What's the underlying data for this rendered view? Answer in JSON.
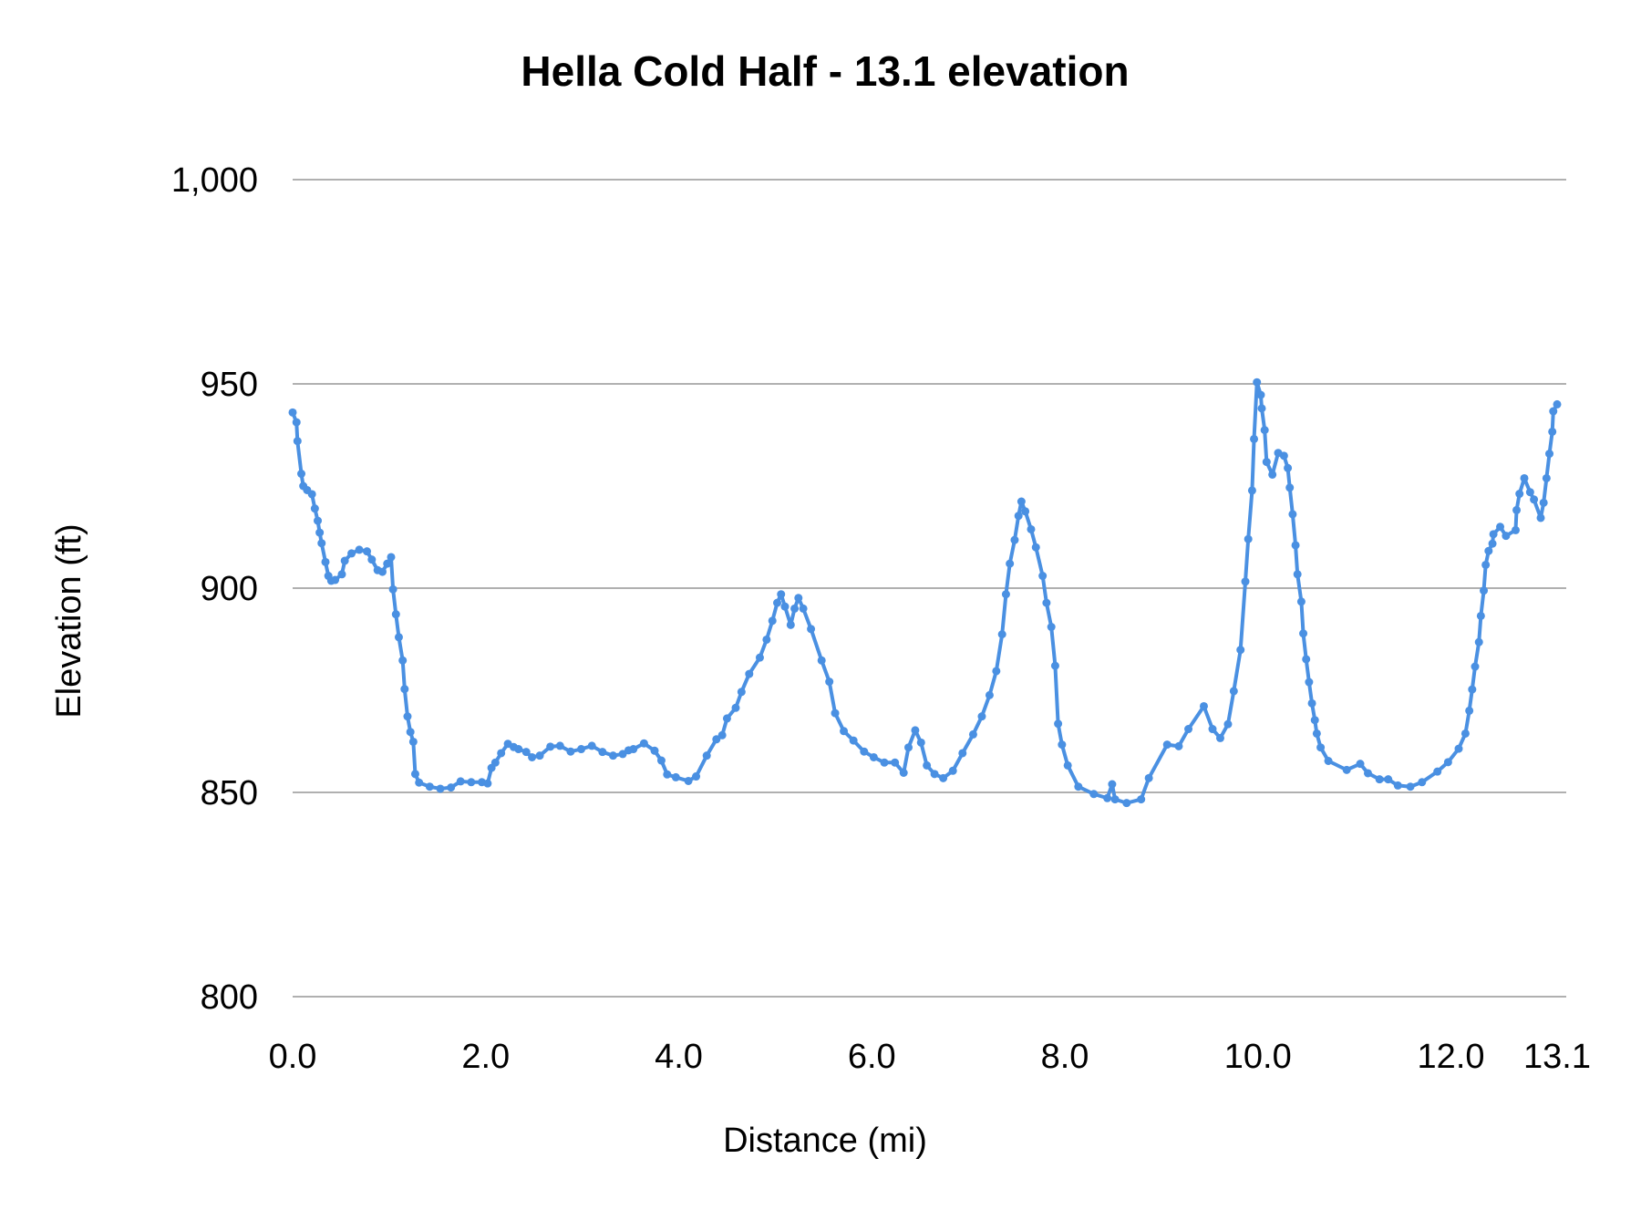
{
  "chart_data": {
    "type": "line",
    "title": "Hella Cold Half - 13.1 elevation",
    "xlabel": "Distance (mi)",
    "ylabel": "Elevation (ft)",
    "xlim": [
      0,
      13.1
    ],
    "ylim": [
      800,
      1000
    ],
    "x_ticks": [
      "0.0",
      "2.0",
      "4.0",
      "6.0",
      "8.0",
      "10.0",
      "12.0",
      "13.1"
    ],
    "x_tick_values": [
      0,
      2,
      4,
      6,
      8,
      10,
      12,
      13.1
    ],
    "y_ticks": [
      "800",
      "850",
      "900",
      "950",
      "1,000"
    ],
    "y_tick_values": [
      800,
      850,
      900,
      950,
      1000
    ],
    "grid": "horizontal",
    "markers": true,
    "color": "#4a90e2",
    "gridline_color": "#b0b0b0",
    "points": [
      [
        0.0,
        943
      ],
      [
        0.04,
        940.6
      ],
      [
        0.05,
        936
      ],
      [
        0.09,
        928
      ],
      [
        0.11,
        925
      ],
      [
        0.15,
        924
      ],
      [
        0.2,
        923
      ],
      [
        0.23,
        919.5
      ],
      [
        0.26,
        916.5
      ],
      [
        0.28,
        913.6
      ],
      [
        0.3,
        911
      ],
      [
        0.34,
        906.4
      ],
      [
        0.37,
        903
      ],
      [
        0.4,
        901.8
      ],
      [
        0.44,
        902
      ],
      [
        0.51,
        903.4
      ],
      [
        0.54,
        906.7
      ],
      [
        0.61,
        908.5
      ],
      [
        0.69,
        909.4
      ],
      [
        0.77,
        909
      ],
      [
        0.82,
        907
      ],
      [
        0.88,
        904.4
      ],
      [
        0.93,
        904
      ],
      [
        0.98,
        906
      ],
      [
        1.02,
        907.6
      ],
      [
        1.04,
        899.7
      ],
      [
        1.07,
        893.6
      ],
      [
        1.1,
        888
      ],
      [
        1.14,
        882.3
      ],
      [
        1.16,
        875.3
      ],
      [
        1.19,
        868.6
      ],
      [
        1.22,
        864.8
      ],
      [
        1.25,
        862.4
      ],
      [
        1.27,
        854.5
      ],
      [
        1.31,
        852.4
      ],
      [
        1.42,
        851.4
      ],
      [
        1.53,
        850.9
      ],
      [
        1.64,
        851.2
      ],
      [
        1.74,
        852.7
      ],
      [
        1.85,
        852.5
      ],
      [
        1.96,
        852.5
      ],
      [
        2.02,
        852.2
      ],
      [
        2.06,
        856
      ],
      [
        2.1,
        857.3
      ],
      [
        2.16,
        859.6
      ],
      [
        2.23,
        861.9
      ],
      [
        2.29,
        861.1
      ],
      [
        2.34,
        860.6
      ],
      [
        2.42,
        859.9
      ],
      [
        2.48,
        858.6
      ],
      [
        2.56,
        859
      ],
      [
        2.67,
        861.2
      ],
      [
        2.77,
        861.4
      ],
      [
        2.88,
        860
      ],
      [
        2.99,
        860.6
      ],
      [
        3.1,
        861.4
      ],
      [
        3.21,
        859.9
      ],
      [
        3.32,
        859
      ],
      [
        3.42,
        859.4
      ],
      [
        3.48,
        860.3
      ],
      [
        3.53,
        860.6
      ],
      [
        3.64,
        862
      ],
      [
        3.75,
        860.2
      ],
      [
        3.82,
        857.8
      ],
      [
        3.88,
        854.4
      ],
      [
        3.97,
        853.7
      ],
      [
        4.1,
        852.8
      ],
      [
        4.18,
        853.9
      ],
      [
        4.29,
        859
      ],
      [
        4.39,
        863
      ],
      [
        4.45,
        864
      ],
      [
        4.5,
        868.1
      ],
      [
        4.59,
        870.7
      ],
      [
        4.65,
        874.6
      ],
      [
        4.73,
        879
      ],
      [
        4.84,
        883
      ],
      [
        4.91,
        887.4
      ],
      [
        4.97,
        892
      ],
      [
        5.02,
        896.4
      ],
      [
        5.06,
        898.5
      ],
      [
        5.1,
        895.5
      ],
      [
        5.16,
        891
      ],
      [
        5.2,
        895
      ],
      [
        5.24,
        897.6
      ],
      [
        5.29,
        895
      ],
      [
        5.37,
        890
      ],
      [
        5.48,
        882.3
      ],
      [
        5.56,
        877.1
      ],
      [
        5.62,
        869.4
      ],
      [
        5.71,
        865
      ],
      [
        5.81,
        862.7
      ],
      [
        5.92,
        860
      ],
      [
        6.02,
        858.6
      ],
      [
        6.13,
        857.3
      ],
      [
        6.24,
        857.3
      ],
      [
        6.33,
        854.8
      ],
      [
        6.38,
        861
      ],
      [
        6.45,
        865.2
      ],
      [
        6.51,
        862.2
      ],
      [
        6.57,
        856.6
      ],
      [
        6.65,
        854.5
      ],
      [
        6.74,
        853.5
      ],
      [
        6.84,
        855.3
      ],
      [
        6.94,
        859.6
      ],
      [
        7.05,
        864.2
      ],
      [
        7.14,
        868.6
      ],
      [
        7.22,
        873.8
      ],
      [
        7.29,
        879.7
      ],
      [
        7.35,
        888.7
      ],
      [
        7.39,
        898.5
      ],
      [
        7.43,
        906
      ],
      [
        7.48,
        911.8
      ],
      [
        7.52,
        917.7
      ],
      [
        7.55,
        921.2
      ],
      [
        7.59,
        918.8
      ],
      [
        7.65,
        914.4
      ],
      [
        7.7,
        910
      ],
      [
        7.77,
        903
      ],
      [
        7.81,
        896.4
      ],
      [
        7.86,
        890.5
      ],
      [
        7.9,
        881
      ],
      [
        7.93,
        866.8
      ],
      [
        7.97,
        861.7
      ],
      [
        8.03,
        856.6
      ],
      [
        8.14,
        851.4
      ],
      [
        8.3,
        849.6
      ],
      [
        8.44,
        848.6
      ],
      [
        8.49,
        852
      ],
      [
        8.52,
        848.3
      ],
      [
        8.64,
        847.4
      ],
      [
        8.79,
        848.3
      ],
      [
        8.87,
        853.5
      ],
      [
        9.06,
        861.7
      ],
      [
        9.18,
        861.3
      ],
      [
        9.28,
        865.5
      ],
      [
        9.44,
        871.1
      ],
      [
        9.53,
        865.5
      ],
      [
        9.61,
        863.3
      ],
      [
        9.69,
        866.7
      ],
      [
        9.75,
        874.8
      ],
      [
        9.82,
        884.9
      ],
      [
        9.87,
        901.6
      ],
      [
        9.9,
        912
      ],
      [
        9.94,
        923.9
      ],
      [
        9.96,
        936.5
      ],
      [
        9.99,
        950.4
      ],
      [
        10.03,
        947.3
      ],
      [
        10.04,
        944
      ],
      [
        10.07,
        938.7
      ],
      [
        10.09,
        930.9
      ],
      [
        10.15,
        927.8
      ],
      [
        10.21,
        933.1
      ],
      [
        10.27,
        932.4
      ],
      [
        10.31,
        929.4
      ],
      [
        10.33,
        924.6
      ],
      [
        10.36,
        918.1
      ],
      [
        10.39,
        910.5
      ],
      [
        10.41,
        903.4
      ],
      [
        10.45,
        896.7
      ],
      [
        10.47,
        888.9
      ],
      [
        10.5,
        882.6
      ],
      [
        10.53,
        877
      ],
      [
        10.56,
        871.8
      ],
      [
        10.59,
        867.7
      ],
      [
        10.61,
        864.4
      ],
      [
        10.65,
        861
      ],
      [
        10.73,
        857.7
      ],
      [
        10.92,
        855.5
      ],
      [
        11.06,
        857
      ],
      [
        11.14,
        854.7
      ],
      [
        11.26,
        853.2
      ],
      [
        11.35,
        853.2
      ],
      [
        11.45,
        851.7
      ],
      [
        11.58,
        851.4
      ],
      [
        11.7,
        852.5
      ],
      [
        11.86,
        855.1
      ],
      [
        11.97,
        857.4
      ],
      [
        12.08,
        860.7
      ],
      [
        12.15,
        864.4
      ],
      [
        12.19,
        870
      ],
      [
        12.22,
        875.2
      ],
      [
        12.25,
        880.8
      ],
      [
        12.29,
        886.8
      ],
      [
        12.31,
        893.2
      ],
      [
        12.34,
        899.4
      ],
      [
        12.36,
        905.7
      ],
      [
        12.39,
        909.1
      ],
      [
        12.43,
        910.9
      ],
      [
        12.44,
        913.2
      ],
      [
        12.51,
        915
      ],
      [
        12.57,
        912.8
      ],
      [
        12.67,
        914.2
      ],
      [
        12.68,
        919.1
      ],
      [
        12.71,
        923.1
      ],
      [
        12.76,
        926.9
      ],
      [
        12.82,
        923.5
      ],
      [
        12.86,
        921.7
      ],
      [
        12.93,
        917.2
      ],
      [
        12.96,
        920.9
      ],
      [
        12.99,
        926.9
      ],
      [
        13.02,
        932.9
      ],
      [
        13.05,
        938.3
      ],
      [
        13.06,
        943.3
      ],
      [
        13.1,
        945
      ]
    ]
  }
}
